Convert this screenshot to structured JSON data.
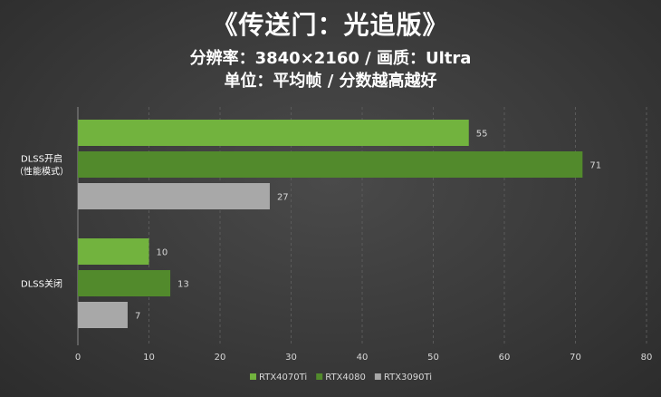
{
  "chart_data": {
    "type": "bar",
    "orientation": "horizontal",
    "title": "《传送门：光追版》",
    "subtitle": "分辨率：3840×2160 / 画质：Ultra",
    "subtitle2": "单位：平均帧 / 分数越高越好",
    "categories": [
      "DLSS开启\n（性能模式）",
      "DLSS关闭"
    ],
    "series": [
      {
        "name": "RTX4070Ti",
        "color": "#72b33e",
        "values": [
          55,
          10
        ]
      },
      {
        "name": "RTX4080",
        "color": "#528a2c",
        "values": [
          71,
          13
        ]
      },
      {
        "name": "RTX3090Ti",
        "color": "#a8a8a8",
        "values": [
          27,
          7
        ]
      }
    ],
    "xlim": [
      0,
      80
    ],
    "xticks": [
      0,
      10,
      20,
      30,
      40,
      50,
      60,
      70,
      80
    ],
    "grid": true,
    "legend": "bottom"
  }
}
